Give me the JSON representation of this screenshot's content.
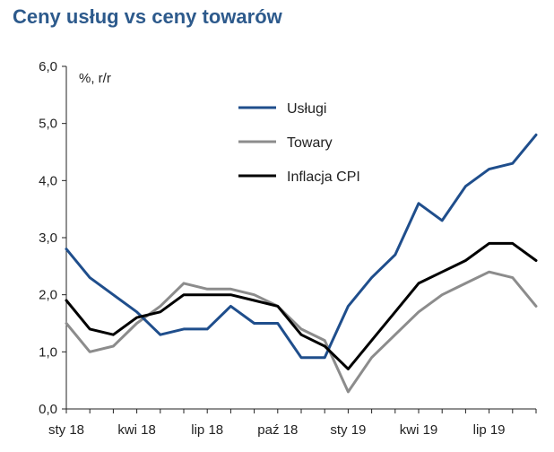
{
  "chart_data": {
    "type": "line",
    "title": "Ceny usług vs ceny towarów",
    "ylabel": "%, r/r",
    "xlabel": "",
    "ylim": [
      0,
      6
    ],
    "y_ticks": [
      "0,0",
      "1,0",
      "2,0",
      "3,0",
      "4,0",
      "5,0",
      "6,0"
    ],
    "x": [
      "2018-01",
      "2018-02",
      "2018-03",
      "2018-04",
      "2018-05",
      "2018-06",
      "2018-07",
      "2018-08",
      "2018-09",
      "2018-10",
      "2018-11",
      "2018-12",
      "2019-01",
      "2019-02",
      "2019-03",
      "2019-04",
      "2019-05",
      "2019-06",
      "2019-07",
      "2019-08",
      "2019-09"
    ],
    "x_tick_labels": [
      {
        "label": "sty 18",
        "index": 0
      },
      {
        "label": "kwi 18",
        "index": 3
      },
      {
        "label": "lip 18",
        "index": 6
      },
      {
        "label": "paź 18",
        "index": 9
      },
      {
        "label": "sty 19",
        "index": 12
      },
      {
        "label": "kwi 19",
        "index": 15
      },
      {
        "label": "lip 19",
        "index": 18
      }
    ],
    "grid": false,
    "legend_position": "top-center",
    "series": [
      {
        "name": "Usługi",
        "color": "#1f4e8c",
        "values": [
          2.8,
          2.3,
          2.0,
          1.7,
          1.3,
          1.4,
          1.4,
          1.8,
          1.5,
          1.5,
          0.9,
          0.9,
          1.8,
          2.3,
          2.7,
          3.6,
          3.3,
          3.9,
          4.2,
          4.3,
          4.8
        ]
      },
      {
        "name": "Towary",
        "color": "#8c8c8c",
        "values": [
          1.5,
          1.0,
          1.1,
          1.5,
          1.8,
          2.2,
          2.1,
          2.1,
          2.0,
          1.8,
          1.4,
          1.2,
          0.3,
          0.9,
          1.3,
          1.7,
          2.0,
          2.2,
          2.4,
          2.3,
          1.8
        ]
      },
      {
        "name": "Inflacja CPI",
        "color": "#000000",
        "values": [
          1.9,
          1.4,
          1.3,
          1.6,
          1.7,
          2.0,
          2.0,
          2.0,
          1.9,
          1.8,
          1.3,
          1.1,
          0.7,
          1.2,
          1.7,
          2.2,
          2.4,
          2.6,
          2.9,
          2.9,
          2.6
        ]
      }
    ]
  }
}
